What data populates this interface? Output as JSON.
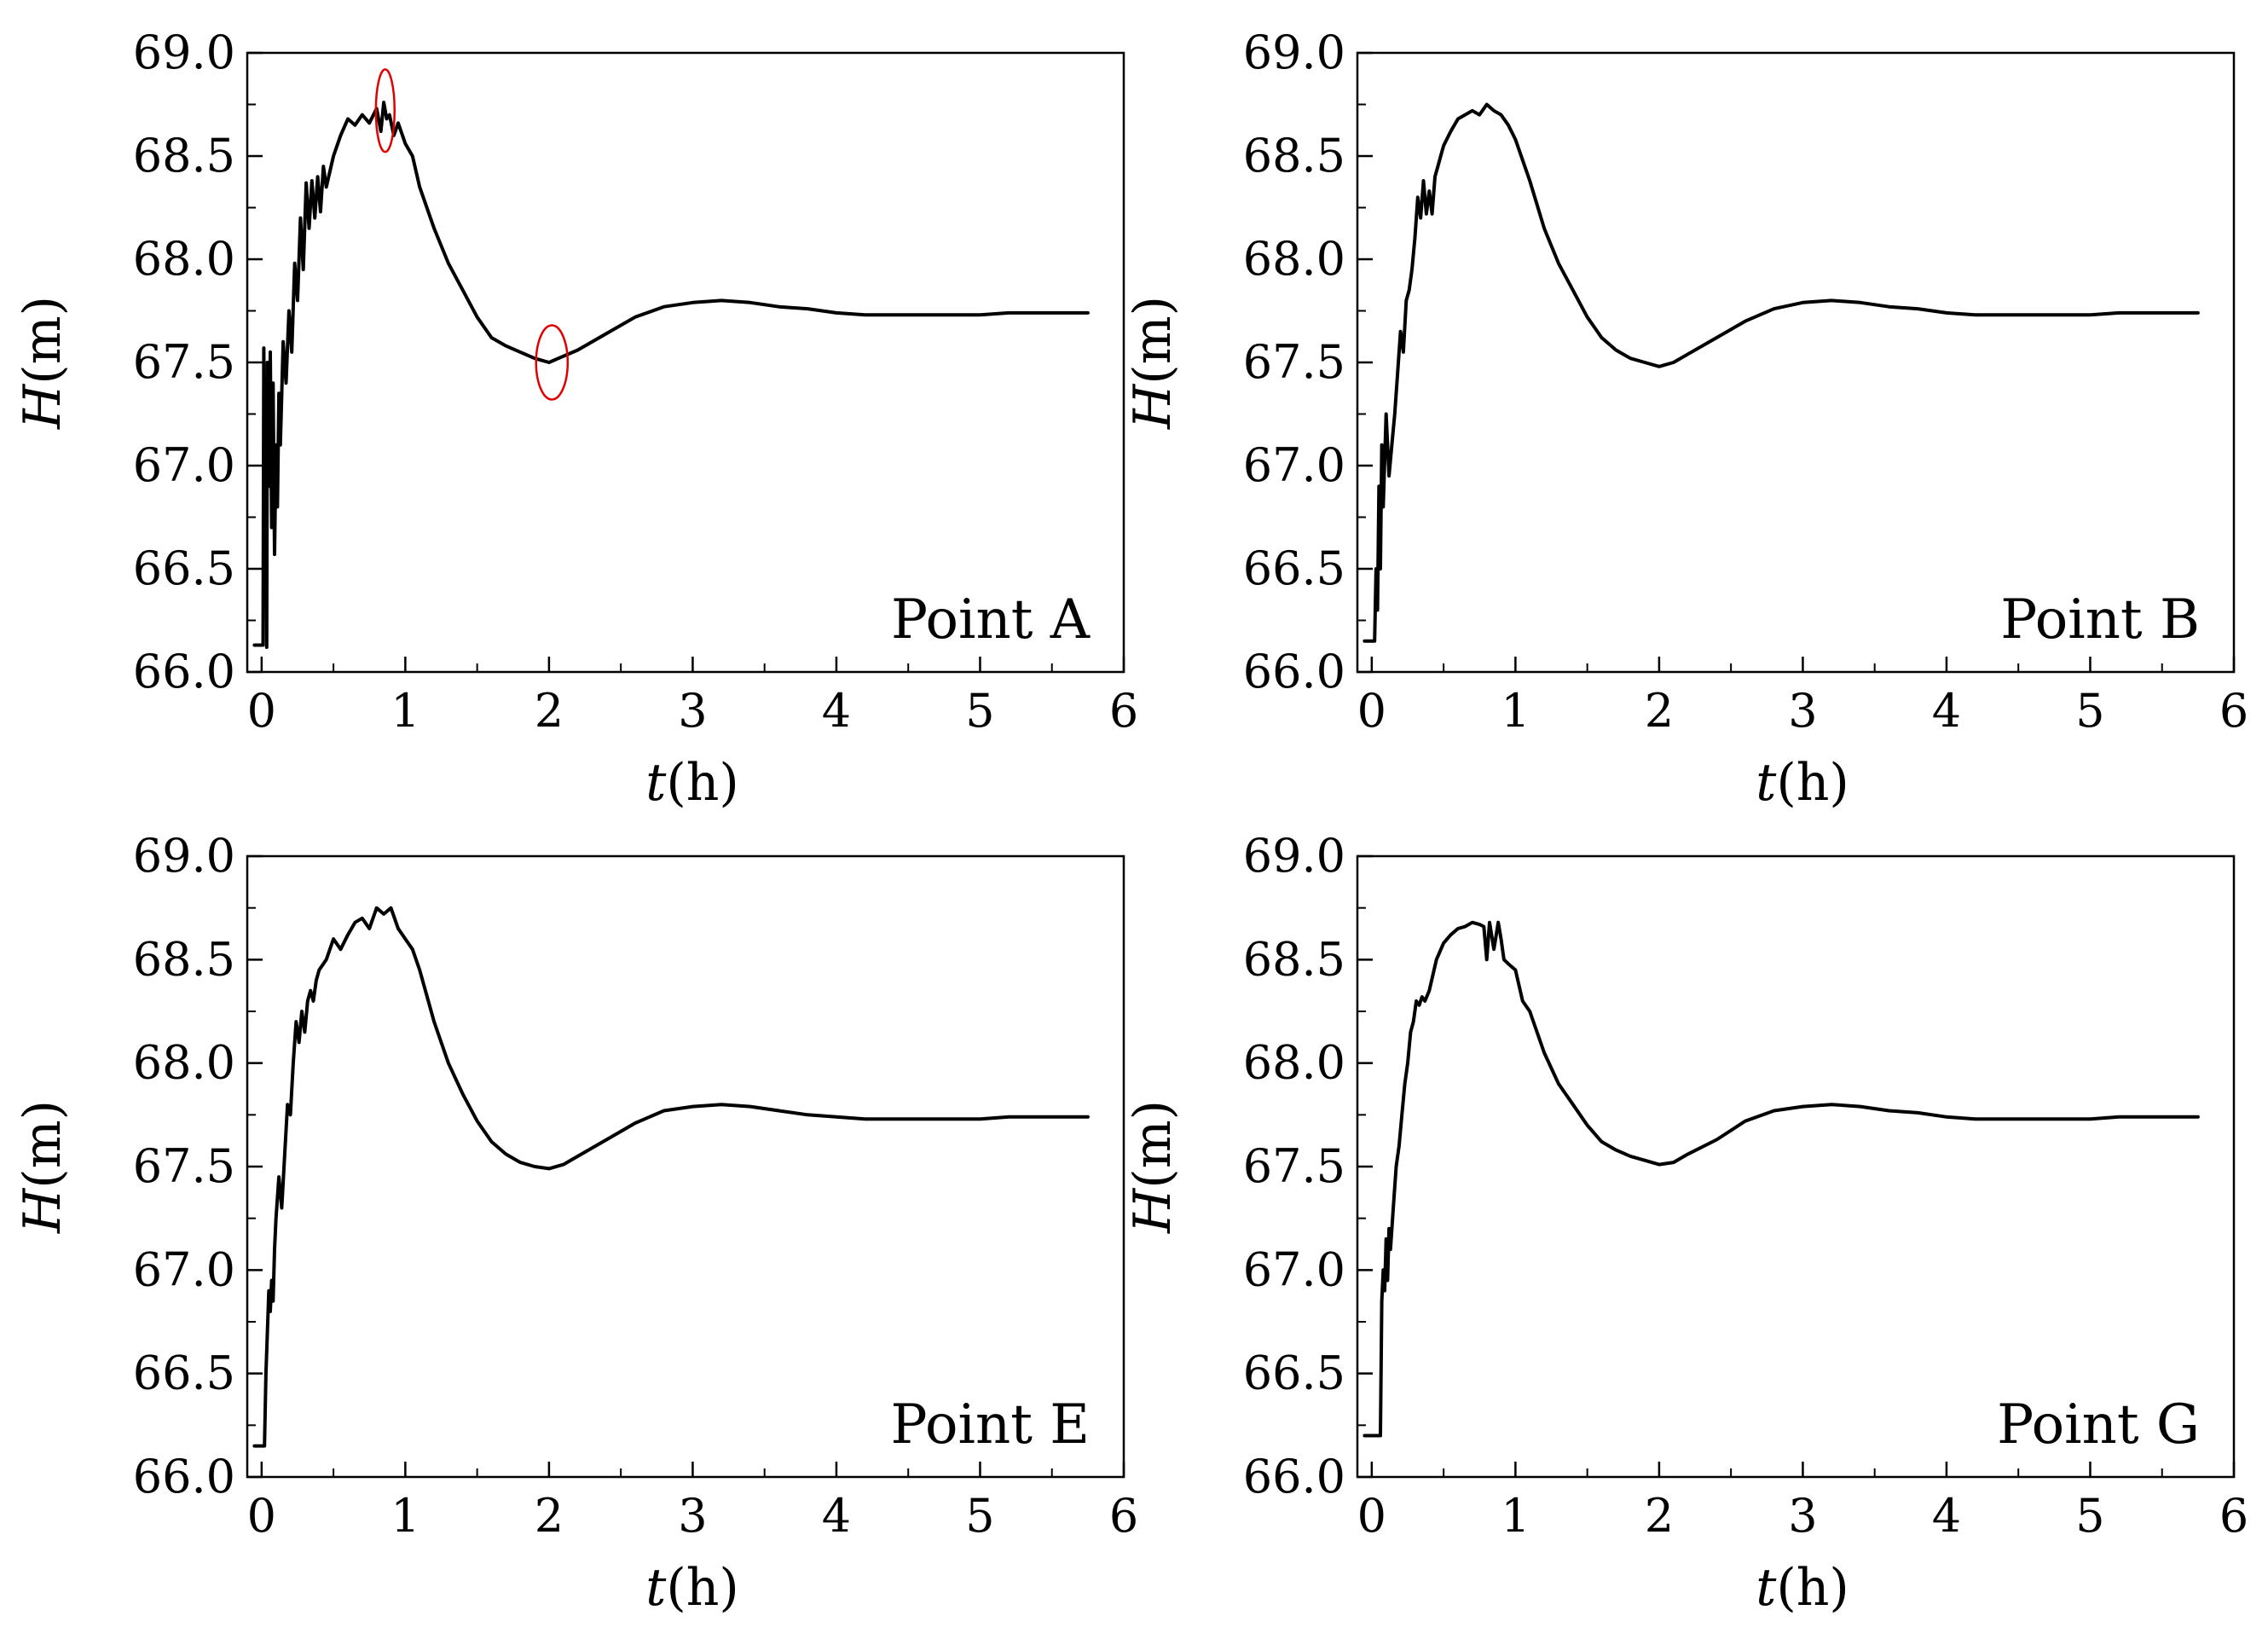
{
  "chart_data": [
    {
      "type": "line",
      "panel": "Point A",
      "label": "Point A",
      "xlabel": {
        "var": "t",
        "unit": "(h)"
      },
      "ylabel": {
        "var": "H",
        "unit": "(m)"
      },
      "xlim": [
        -0.1,
        6
      ],
      "ylim": [
        66.0,
        69.0
      ],
      "x_ticks": [
        "0",
        "1",
        "2",
        "3",
        "4",
        "5",
        "6"
      ],
      "y_ticks": [
        "66.0",
        "66.5",
        "67.0",
        "67.5",
        "68.0",
        "68.5",
        "69.0"
      ],
      "annotations": [
        {
          "type": "ellipse",
          "color": "#e00000",
          "x": 0.86,
          "y": 68.72,
          "rx": 0.065,
          "ry": 0.2
        },
        {
          "type": "ellipse",
          "color": "#e00000",
          "x": 2.02,
          "y": 67.5,
          "rx": 0.11,
          "ry": 0.18
        }
      ],
      "series": [
        {
          "name": "H",
          "color": "#000000",
          "x": [
            -0.05,
            0.0,
            0.01,
            0.015,
            0.02,
            0.03,
            0.035,
            0.04,
            0.05,
            0.06,
            0.07,
            0.08,
            0.09,
            0.1,
            0.11,
            0.12,
            0.13,
            0.15,
            0.17,
            0.19,
            0.21,
            0.23,
            0.25,
            0.27,
            0.29,
            0.31,
            0.33,
            0.35,
            0.37,
            0.39,
            0.41,
            0.43,
            0.45,
            0.5,
            0.55,
            0.6,
            0.65,
            0.7,
            0.75,
            0.8,
            0.83,
            0.85,
            0.87,
            0.89,
            0.92,
            0.95,
            1.0,
            1.05,
            1.1,
            1.2,
            1.3,
            1.4,
            1.5,
            1.6,
            1.7,
            1.8,
            1.9,
            2.0,
            2.1,
            2.2,
            2.4,
            2.6,
            2.8,
            3.0,
            3.2,
            3.4,
            3.6,
            3.8,
            4.0,
            4.2,
            4.4,
            4.6,
            4.8,
            5.0,
            5.2,
            5.4,
            5.6,
            5.75
          ],
          "y": [
            66.13,
            66.13,
            66.13,
            67.57,
            66.8,
            67.2,
            66.12,
            67.5,
            66.9,
            67.55,
            66.7,
            67.4,
            66.57,
            67.1,
            66.8,
            67.35,
            67.1,
            67.6,
            67.4,
            67.75,
            67.55,
            67.98,
            67.8,
            68.2,
            67.95,
            68.37,
            68.15,
            68.38,
            68.2,
            68.4,
            68.23,
            68.45,
            68.35,
            68.5,
            68.6,
            68.68,
            68.65,
            68.7,
            68.66,
            68.73,
            68.62,
            68.76,
            68.68,
            68.7,
            68.6,
            68.66,
            68.56,
            68.5,
            68.35,
            68.15,
            67.98,
            67.85,
            67.72,
            67.62,
            67.58,
            67.55,
            67.52,
            67.5,
            67.53,
            67.56,
            67.64,
            67.72,
            67.77,
            67.79,
            67.8,
            67.79,
            67.77,
            67.76,
            67.74,
            67.73,
            67.73,
            67.73,
            67.73,
            67.73,
            67.74,
            67.74,
            67.74,
            67.74
          ]
        }
      ]
    },
    {
      "type": "line",
      "panel": "Point B",
      "label": "Point B",
      "xlabel": {
        "var": "t",
        "unit": "(h)"
      },
      "ylabel": {
        "var": "H",
        "unit": "(m)"
      },
      "xlim": [
        -0.1,
        6
      ],
      "ylim": [
        66.0,
        69.0
      ],
      "x_ticks": [
        "0",
        "1",
        "2",
        "3",
        "4",
        "5",
        "6"
      ],
      "y_ticks": [
        "66.0",
        "66.5",
        "67.0",
        "67.5",
        "68.0",
        "68.5",
        "69.0"
      ],
      "series": [
        {
          "name": "H",
          "color": "#000000",
          "x": [
            -0.05,
            0.0,
            0.02,
            0.03,
            0.04,
            0.05,
            0.06,
            0.07,
            0.08,
            0.1,
            0.12,
            0.14,
            0.16,
            0.18,
            0.2,
            0.22,
            0.24,
            0.26,
            0.28,
            0.3,
            0.32,
            0.34,
            0.36,
            0.38,
            0.4,
            0.42,
            0.44,
            0.46,
            0.48,
            0.5,
            0.55,
            0.6,
            0.65,
            0.7,
            0.75,
            0.8,
            0.85,
            0.9,
            0.95,
            1.0,
            1.05,
            1.1,
            1.2,
            1.3,
            1.4,
            1.5,
            1.6,
            1.7,
            1.8,
            1.9,
            2.0,
            2.1,
            2.2,
            2.4,
            2.6,
            2.8,
            3.0,
            3.2,
            3.4,
            3.6,
            3.8,
            4.0,
            4.2,
            4.4,
            4.6,
            4.8,
            5.0,
            5.2,
            5.4,
            5.6,
            5.75
          ],
          "y": [
            66.15,
            66.15,
            66.15,
            66.5,
            66.3,
            66.9,
            66.5,
            67.1,
            66.8,
            67.25,
            66.95,
            67.1,
            67.25,
            67.45,
            67.65,
            67.55,
            67.8,
            67.85,
            67.95,
            68.1,
            68.3,
            68.2,
            68.38,
            68.22,
            68.33,
            68.22,
            68.4,
            68.45,
            68.5,
            68.55,
            68.62,
            68.68,
            68.7,
            68.72,
            68.7,
            68.75,
            68.72,
            68.7,
            68.65,
            68.58,
            68.48,
            68.38,
            68.15,
            67.98,
            67.85,
            67.72,
            67.62,
            67.56,
            67.52,
            67.5,
            67.48,
            67.5,
            67.54,
            67.62,
            67.7,
            67.76,
            67.79,
            67.8,
            67.79,
            67.77,
            67.76,
            67.74,
            67.73,
            67.73,
            67.73,
            67.73,
            67.73,
            67.74,
            67.74,
            67.74,
            67.74
          ]
        }
      ]
    },
    {
      "type": "line",
      "panel": "Point E",
      "label": "Point E",
      "xlabel": {
        "var": "t",
        "unit": "(h)"
      },
      "ylabel": {
        "var": "H",
        "unit": "(m)"
      },
      "xlim": [
        -0.1,
        6
      ],
      "ylim": [
        66.0,
        69.0
      ],
      "x_ticks": [
        "0",
        "1",
        "2",
        "3",
        "4",
        "5",
        "6"
      ],
      "y_ticks": [
        "66.0",
        "66.5",
        "67.0",
        "67.5",
        "68.0",
        "68.5",
        "69.0"
      ],
      "series": [
        {
          "name": "H",
          "color": "#000000",
          "x": [
            -0.05,
            0.0,
            0.02,
            0.03,
            0.04,
            0.05,
            0.06,
            0.07,
            0.08,
            0.09,
            0.1,
            0.12,
            0.14,
            0.16,
            0.18,
            0.2,
            0.22,
            0.24,
            0.26,
            0.28,
            0.3,
            0.32,
            0.34,
            0.36,
            0.38,
            0.4,
            0.45,
            0.5,
            0.55,
            0.6,
            0.65,
            0.7,
            0.75,
            0.8,
            0.85,
            0.9,
            0.95,
            1.0,
            1.05,
            1.1,
            1.2,
            1.3,
            1.4,
            1.5,
            1.6,
            1.7,
            1.8,
            1.9,
            2.0,
            2.1,
            2.2,
            2.4,
            2.6,
            2.8,
            3.0,
            3.2,
            3.4,
            3.6,
            3.8,
            4.0,
            4.2,
            4.4,
            4.6,
            4.8,
            5.0,
            5.2,
            5.4,
            5.6,
            5.75
          ],
          "y": [
            66.15,
            66.15,
            66.15,
            66.5,
            66.7,
            66.9,
            66.8,
            66.95,
            66.85,
            67.1,
            67.25,
            67.45,
            67.3,
            67.55,
            67.8,
            67.75,
            68.0,
            68.2,
            68.1,
            68.25,
            68.15,
            68.3,
            68.35,
            68.3,
            68.4,
            68.45,
            68.5,
            68.6,
            68.55,
            68.62,
            68.68,
            68.7,
            68.65,
            68.75,
            68.72,
            68.75,
            68.65,
            68.6,
            68.55,
            68.45,
            68.2,
            68.0,
            67.85,
            67.72,
            67.62,
            67.56,
            67.52,
            67.5,
            67.49,
            67.51,
            67.55,
            67.63,
            67.71,
            67.77,
            67.79,
            67.8,
            67.79,
            67.77,
            67.75,
            67.74,
            67.73,
            67.73,
            67.73,
            67.73,
            67.73,
            67.74,
            67.74,
            67.74,
            67.74
          ]
        }
      ]
    },
    {
      "type": "line",
      "panel": "Point G",
      "label": "Point G",
      "xlabel": {
        "var": "t",
        "unit": "(h)"
      },
      "ylabel": {
        "var": "H",
        "unit": "(m)"
      },
      "xlim": [
        -0.1,
        6
      ],
      "ylim": [
        66.0,
        69.0
      ],
      "x_ticks": [
        "0",
        "1",
        "2",
        "3",
        "4",
        "5",
        "6"
      ],
      "y_ticks": [
        "66.0",
        "66.5",
        "67.0",
        "67.5",
        "68.0",
        "68.5",
        "69.0"
      ],
      "series": [
        {
          "name": "H",
          "color": "#000000",
          "x": [
            -0.05,
            0.0,
            0.03,
            0.06,
            0.07,
            0.08,
            0.09,
            0.1,
            0.11,
            0.12,
            0.13,
            0.15,
            0.17,
            0.19,
            0.21,
            0.23,
            0.25,
            0.27,
            0.29,
            0.31,
            0.33,
            0.35,
            0.37,
            0.4,
            0.45,
            0.5,
            0.55,
            0.6,
            0.65,
            0.7,
            0.75,
            0.78,
            0.8,
            0.82,
            0.85,
            0.88,
            0.9,
            0.92,
            0.95,
            1.0,
            1.05,
            1.1,
            1.2,
            1.3,
            1.4,
            1.5,
            1.6,
            1.7,
            1.8,
            1.9,
            2.0,
            2.1,
            2.2,
            2.4,
            2.6,
            2.8,
            3.0,
            3.2,
            3.4,
            3.6,
            3.8,
            4.0,
            4.2,
            4.4,
            4.6,
            4.8,
            5.0,
            5.2,
            5.4,
            5.6,
            5.75
          ],
          "y": [
            66.2,
            66.2,
            66.2,
            66.2,
            66.85,
            67.0,
            66.9,
            67.15,
            66.95,
            67.2,
            67.1,
            67.3,
            67.5,
            67.6,
            67.75,
            67.9,
            68.0,
            68.15,
            68.2,
            68.3,
            68.28,
            68.32,
            68.3,
            68.35,
            68.5,
            68.58,
            68.62,
            68.65,
            68.66,
            68.68,
            68.67,
            68.66,
            68.5,
            68.68,
            68.55,
            68.68,
            68.6,
            68.5,
            68.48,
            68.45,
            68.3,
            68.25,
            68.05,
            67.9,
            67.8,
            67.7,
            67.62,
            67.58,
            67.55,
            67.53,
            67.51,
            67.52,
            67.56,
            67.63,
            67.72,
            67.77,
            67.79,
            67.8,
            67.79,
            67.77,
            67.76,
            67.74,
            67.73,
            67.73,
            67.73,
            67.73,
            67.73,
            67.74,
            67.74,
            67.74,
            67.74
          ]
        }
      ]
    }
  ]
}
